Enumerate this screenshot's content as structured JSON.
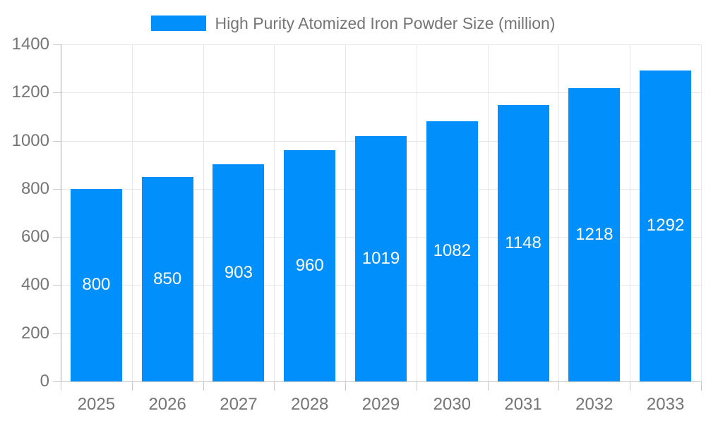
{
  "chart_data": {
    "type": "bar",
    "title": "High Purity Atomized Iron Powder Size (million)",
    "categories": [
      "2025",
      "2026",
      "2027",
      "2028",
      "2029",
      "2030",
      "2031",
      "2032",
      "2033"
    ],
    "series": [
      {
        "name": "High Purity Atomized Iron Powder Size (million)",
        "values": [
          800,
          850,
          903,
          960,
          1019,
          1082,
          1148,
          1218,
          1292
        ]
      }
    ],
    "value_labels": [
      "800",
      "850",
      "903",
      "960",
      "1019",
      "1082",
      "1148",
      "1218",
      "1292"
    ],
    "xlabel": "",
    "ylabel": "",
    "ylim": [
      0,
      1400
    ],
    "ytick_step": 200,
    "ytick_labels": [
      "0",
      "200",
      "400",
      "600",
      "800",
      "1000",
      "1200",
      "1400"
    ],
    "grid": true,
    "legend_position": "top",
    "value_labels_position": "center",
    "colors": {
      "bar": "#008FFB",
      "axis_label": "#757575",
      "legend_label": "#757575",
      "value_label": "#FFFFFF",
      "gridline": "#E7E7E7",
      "y_axis_line": "#A6A6A6",
      "x_axis_line": "#C9C9C9",
      "tick": "#C9C9C9",
      "background": "#FFFFFF"
    }
  }
}
